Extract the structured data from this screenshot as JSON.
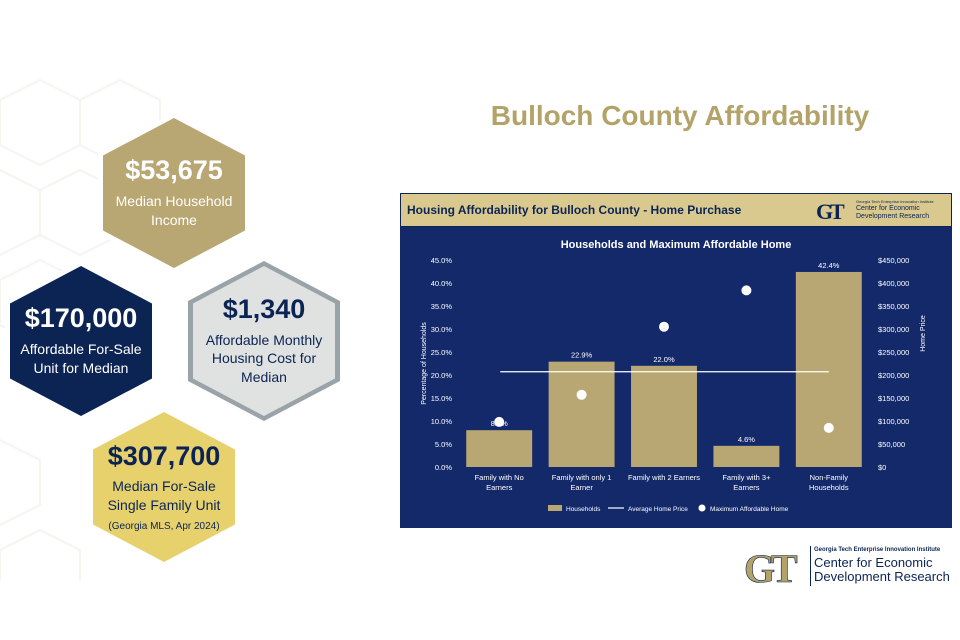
{
  "page": {
    "title": "Bulloch County Affordability"
  },
  "hexagons": [
    {
      "value": "$53,675",
      "label": "Median Household Income",
      "note": ""
    },
    {
      "value": "$170,000",
      "label": "Affordable For-Sale Unit for Median",
      "note": ""
    },
    {
      "value": "$1,340",
      "label": "Affordable Monthly Housing Cost for Median",
      "note": ""
    },
    {
      "value": "$307,700",
      "label": "Median For-Sale Single Family Unit",
      "note": "(Georgia MLS, Apr 2024)"
    }
  ],
  "panel": {
    "header_title": "Housing Affordability for Bulloch County - Home Purchase",
    "logo_small_inst": "Georgia Tech Enterprise Innovation Institute",
    "logo_small_line1": "Center for Economic",
    "logo_small_line2": "Development Research"
  },
  "footer_logo": {
    "inst": "Georgia Tech Enterprise Innovation Institute",
    "line1": "Center for Economic",
    "line2": "Development Research"
  },
  "chart_data": {
    "type": "bar",
    "title": "Households and Maximum Affordable Home",
    "ylabel": "Percentage of Households",
    "y2label": "Home Price",
    "categories": [
      "Family with No Earners",
      "Family with only 1 Earner",
      "Family with 2 Earners",
      "Family with 3+ Earners",
      "Non-Family Households"
    ],
    "ylim": [
      0,
      45
    ],
    "y_ticks": [
      "0.0%",
      "5.0%",
      "10.0%",
      "15.0%",
      "20.0%",
      "25.0%",
      "30.0%",
      "35.0%",
      "40.0%",
      "45.0%"
    ],
    "y2lim": [
      0,
      450000
    ],
    "y2_ticks": [
      "$0",
      "$50,000",
      "$100,000",
      "$150,000",
      "$200,000",
      "$250,000",
      "$300,000",
      "$350,000",
      "$400,000",
      "$450,000"
    ],
    "series": [
      {
        "name": "Households",
        "type": "bar",
        "axis": "left",
        "values": [
          8.0,
          22.9,
          22.0,
          4.6,
          42.4
        ],
        "labels": [
          "8.0%",
          "22.9%",
          "22.0%",
          "4.6%",
          "42.4%"
        ],
        "color": "#b8a773"
      },
      {
        "name": "Average Home Price",
        "type": "line",
        "axis": "right",
        "values": [
          207000,
          207000,
          207000,
          207000,
          207000
        ],
        "color": "#ffffff"
      },
      {
        "name": "Maximum Affordable Home",
        "type": "scatter",
        "axis": "right",
        "values": [
          98000,
          157000,
          305000,
          384000,
          85000
        ],
        "color": "#ffffff"
      }
    ],
    "legend_position": "bottom",
    "grid": false
  }
}
